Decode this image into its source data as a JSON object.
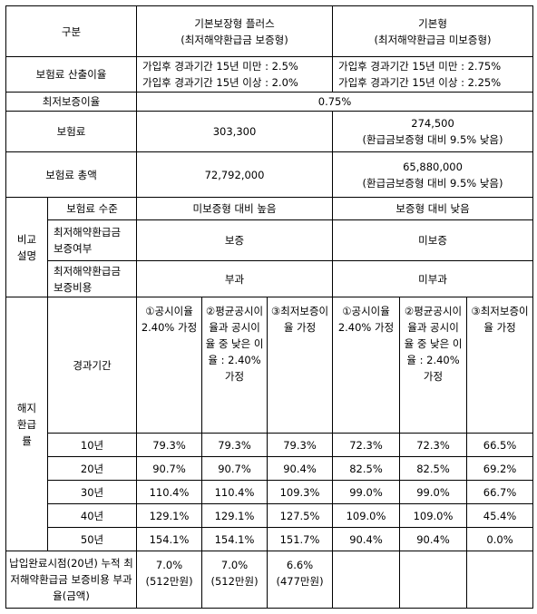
{
  "header": {
    "label": "구분",
    "products": [
      {
        "name": "기본보장형 플러스",
        "sub": "(최저해약환급금 보증형)"
      },
      {
        "name": "기본형",
        "sub": "(최저해약환급금 미보증형)"
      }
    ]
  },
  "rate": {
    "label": "보험료 산출이율",
    "products": [
      [
        "가입후 경과기간 15년 미만 : 2.5%",
        "가입후 경과기간 15년 이상 : 2.0%"
      ],
      [
        "가입후 경과기간 15년 미만 : 2.75%",
        "가입후 경과기간 15년 이상 : 2.25%"
      ]
    ]
  },
  "min_rate": {
    "label": "최저보증이율",
    "value": "0.75%"
  },
  "premium": {
    "label": "보험료",
    "products": [
      [
        "303,300"
      ],
      [
        "274,500",
        "(환급금보증형 대비 9.5% 낮음)"
      ]
    ]
  },
  "total": {
    "label": "보험료 총액",
    "products": [
      [
        "72,792,000"
      ],
      [
        "65,880,000",
        "(환급금보증형 대비 9.5% 낮음)"
      ]
    ]
  },
  "comparison": {
    "label": [
      "비교",
      "설명"
    ],
    "rows": [
      {
        "label": "보험료 수준",
        "values": [
          "미보증형 대비 높음",
          "보증형 대비 낮음"
        ]
      },
      {
        "label": "최저해약환급금 보증여부",
        "values": [
          "보증",
          "미보증"
        ]
      },
      {
        "label": "최저해약환급금 보증비용",
        "values": [
          "부과",
          "미부과"
        ]
      }
    ]
  },
  "refund": {
    "label": [
      "해지",
      "환급",
      "률"
    ],
    "period_label": "경과기간",
    "scenarios": [
      "①공시이율 2.40% 가정",
      "②평균공시이율과 공시이율 중 낮은 이율 : 2.40% 가정",
      "③최저보증이율 가정",
      "①공시이율 2.40% 가정",
      "②평균공시이율과 공시이율 중 낮은 이율 : 2.40% 가정",
      "③최저보증이율 가정"
    ],
    "rows": [
      {
        "period": "10년",
        "values": [
          "79.3%",
          "79.3%",
          "79.3%",
          "72.3%",
          "72.3%",
          "66.5%"
        ]
      },
      {
        "period": "20년",
        "values": [
          "90.7%",
          "90.7%",
          "90.4%",
          "82.5%",
          "82.5%",
          "69.2%"
        ]
      },
      {
        "period": "30년",
        "values": [
          "110.4%",
          "110.4%",
          "109.3%",
          "99.0%",
          "99.0%",
          "66.7%"
        ]
      },
      {
        "period": "40년",
        "values": [
          "129.1%",
          "129.1%",
          "127.5%",
          "109.0%",
          "109.0%",
          "45.4%"
        ]
      },
      {
        "period": "50년",
        "values": [
          "154.1%",
          "154.1%",
          "151.7%",
          "90.4%",
          "90.4%",
          "0.0%"
        ]
      }
    ]
  },
  "paid": {
    "label": "납입완료시점(20년) 누적 최저해약환급금 보증비용 부과율(금액)",
    "values": [
      [
        "7.0%",
        "(512만원)"
      ],
      [
        "7.0%",
        "(512만원)"
      ],
      [
        "6.6%",
        "(477만원)"
      ]
    ]
  }
}
